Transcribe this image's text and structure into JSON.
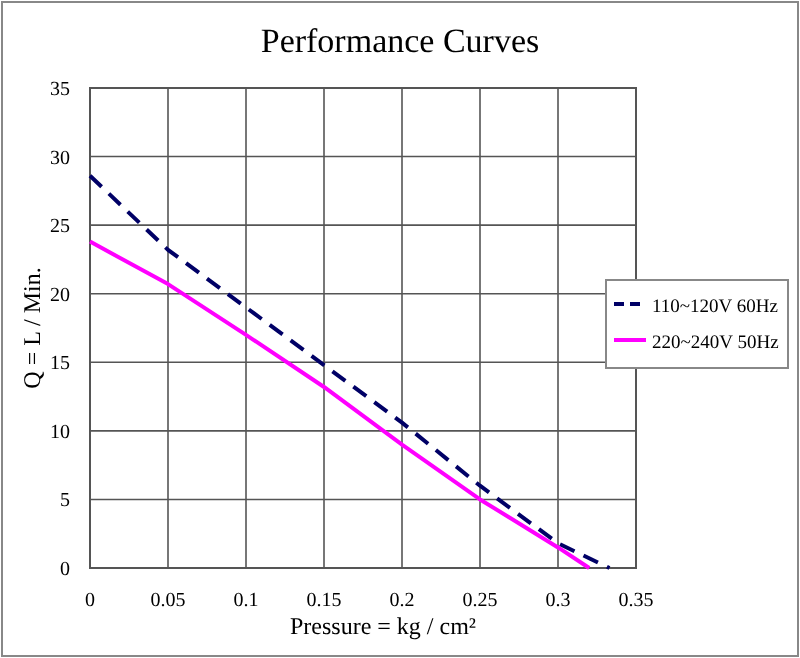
{
  "chart_data": {
    "type": "line",
    "title": "Performance Curves",
    "xlabel": "Pressure = kg / cm²",
    "ylabel": "Q = L / Min.",
    "xlim": [
      0,
      0.35
    ],
    "xticks": [
      0,
      0.05,
      0.1,
      0.15,
      0.2,
      0.25,
      0.3,
      0.35
    ],
    "ylim": [
      0,
      35
    ],
    "yticks": [
      0,
      5,
      10,
      15,
      20,
      25,
      30,
      35
    ],
    "grid": true,
    "legend": "right",
    "series": [
      {
        "name": "110~120V 60Hz",
        "color": "#000066",
        "line_style": "dashed",
        "x": [
          0,
          0.05,
          0.1,
          0.15,
          0.2,
          0.25,
          0.3,
          0.333
        ],
        "values": [
          28.6,
          23.2,
          19,
          14.8,
          10.6,
          6,
          1.8,
          0
        ]
      },
      {
        "name": "220~240V 50Hz",
        "color": "#ff00ff",
        "line_style": "solid",
        "x": [
          0,
          0.05,
          0.1,
          0.15,
          0.2,
          0.25,
          0.3,
          0.32
        ],
        "values": [
          23.8,
          20.7,
          17,
          13.2,
          9,
          5,
          1.5,
          0
        ]
      }
    ]
  }
}
